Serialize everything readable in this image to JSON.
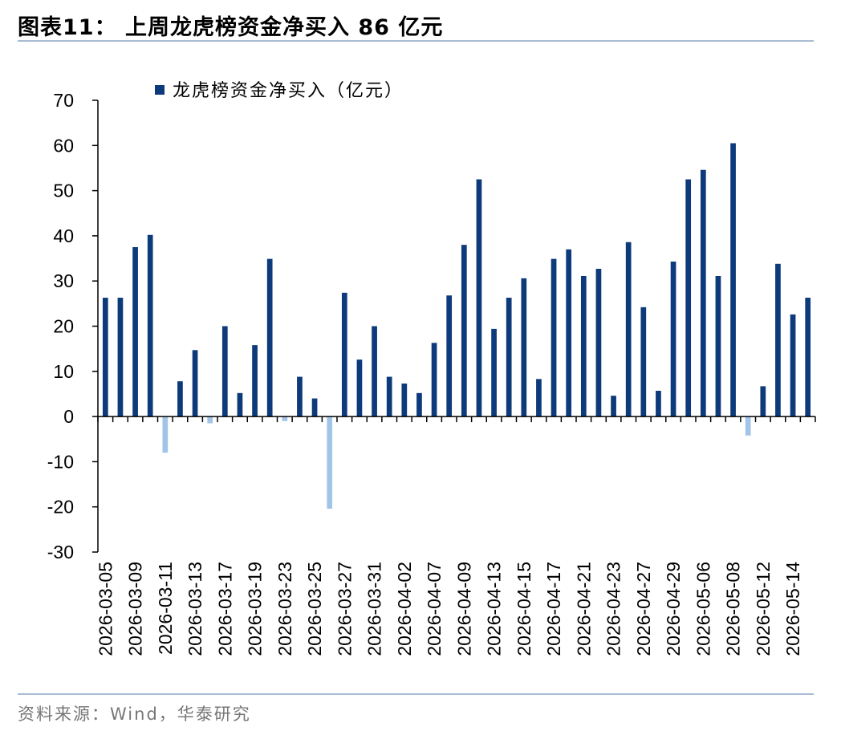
{
  "title": "图表11：  上周龙虎榜资金净买入 86 亿元",
  "source": "资料来源：Wind，华泰研究",
  "colors": {
    "positive": "#0c3a7a",
    "negative": "#a2c4e8",
    "rule": "#a9bcd2"
  },
  "chart_data": {
    "type": "bar",
    "title": "",
    "xlabel": "",
    "ylabel": "",
    "ylim": [
      -30,
      70
    ],
    "yticks": [
      70,
      60,
      50,
      40,
      30,
      20,
      10,
      0,
      -10,
      -20,
      -30
    ],
    "legend": {
      "label": "龙虎榜资金净买入（亿元）",
      "position": "top-left"
    },
    "categories": [
      "2026-03-05",
      "2026-03-06",
      "2026-03-09",
      "2026-03-10",
      "2026-03-11",
      "2026-03-12",
      "2026-03-13",
      "2026-03-16",
      "2026-03-17",
      "2026-03-18",
      "2026-03-19",
      "2026-03-20",
      "2026-03-23",
      "2026-03-24",
      "2026-03-25",
      "2026-03-26",
      "2026-03-27",
      "2026-03-30",
      "2026-03-31",
      "2026-04-01",
      "2026-04-02",
      "2026-04-03",
      "2026-04-07",
      "2026-04-08",
      "2026-04-09",
      "2026-04-10",
      "2026-04-13",
      "2026-04-14",
      "2026-04-15",
      "2026-04-16",
      "2026-04-17",
      "2026-04-20",
      "2026-04-21",
      "2026-04-22",
      "2026-04-23",
      "2026-04-24",
      "2026-04-27",
      "2026-04-28",
      "2026-04-29",
      "2026-04-30",
      "2026-05-06",
      "2026-05-07",
      "2026-05-08",
      "2026-05-11",
      "2026-05-12",
      "2026-05-13",
      "2026-05-14",
      "2026-05-15"
    ],
    "xtick_labels": [
      "2026-03-05",
      "2026-03-09",
      "2026-03-11",
      "2026-03-13",
      "2026-03-17",
      "2026-03-19",
      "2026-03-23",
      "2026-03-25",
      "2026-03-27",
      "2026-03-31",
      "2026-04-02",
      "2026-04-07",
      "2026-04-09",
      "2026-04-13",
      "2026-04-15",
      "2026-04-17",
      "2026-04-21",
      "2026-04-23",
      "2026-04-27",
      "2026-04-29",
      "2026-05-06",
      "2026-05-08",
      "2026-05-12",
      "2026-05-14"
    ],
    "series": [
      {
        "name": "龙虎榜资金净买入（亿元）",
        "values": [
          26.3,
          26.3,
          37.5,
          40.2,
          -8.0,
          7.8,
          14.7,
          -1.5,
          20.0,
          5.2,
          15.8,
          34.9,
          -1.0,
          8.8,
          4.0,
          -20.4,
          27.4,
          12.6,
          20.0,
          8.8,
          7.3,
          5.2,
          16.3,
          26.8,
          38.0,
          52.5,
          19.4,
          26.3,
          30.6,
          8.3,
          34.9,
          37.0,
          31.1,
          32.7,
          4.6,
          38.6,
          24.2,
          5.7,
          34.3,
          52.5,
          54.6,
          31.1,
          60.5,
          -4.2,
          6.7,
          33.8,
          22.6,
          26.3
        ]
      }
    ]
  }
}
